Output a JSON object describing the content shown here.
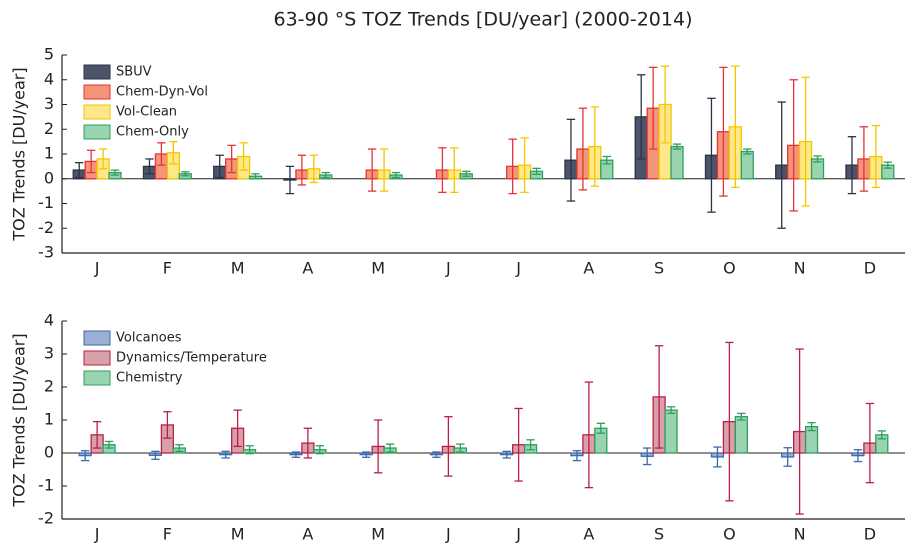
{
  "chart_data": [
    {
      "type": "bar",
      "title": "63-90 °S TOZ Trends [DU/year] (2000-2014)",
      "ylabel": "TOZ Trends [DU/year]",
      "categories": [
        "J",
        "F",
        "M",
        "A",
        "M",
        "J",
        "J",
        "A",
        "S",
        "O",
        "N",
        "D"
      ],
      "ylim": [
        -3,
        5
      ],
      "yticks": [
        -3,
        -2,
        -1,
        0,
        1,
        2,
        3,
        4,
        5
      ],
      "legend": "upper left",
      "series": [
        {
          "name": "SBUV",
          "color": "#4b5469",
          "edge": "#2a3347",
          "values": [
            0.35,
            0.5,
            0.5,
            -0.05,
            null,
            null,
            null,
            0.75,
            2.5,
            0.95,
            0.55,
            0.55
          ],
          "errors": [
            0.3,
            0.3,
            0.45,
            0.55,
            null,
            null,
            null,
            1.65,
            1.7,
            2.3,
            2.55,
            1.15
          ]
        },
        {
          "name": "Chem-Dyn-Vol",
          "color": "#f4957a",
          "edge": "#e2343a",
          "values": [
            0.7,
            1.0,
            0.8,
            0.35,
            0.35,
            0.35,
            0.5,
            1.2,
            2.85,
            1.9,
            1.35,
            0.8
          ],
          "errors": [
            0.45,
            0.45,
            0.55,
            0.6,
            0.85,
            0.9,
            1.1,
            1.65,
            1.65,
            2.6,
            2.65,
            1.3
          ]
        },
        {
          "name": "Vol-Clean",
          "color": "#ffe88a",
          "edge": "#f5c600",
          "values": [
            0.8,
            1.05,
            0.9,
            0.4,
            0.35,
            0.35,
            0.55,
            1.3,
            3.0,
            2.1,
            1.5,
            0.9
          ],
          "errors": [
            0.4,
            0.45,
            0.55,
            0.55,
            0.85,
            0.9,
            1.1,
            1.6,
            1.55,
            2.45,
            2.6,
            1.25
          ]
        },
        {
          "name": "Chem-Only",
          "color": "#98d4b0",
          "edge": "#2e9e5e",
          "values": [
            0.25,
            0.2,
            0.1,
            0.15,
            0.15,
            0.2,
            0.3,
            0.75,
            1.3,
            1.1,
            0.8,
            0.55
          ],
          "errors": [
            0.1,
            0.08,
            0.1,
            0.1,
            0.1,
            0.1,
            0.12,
            0.15,
            0.1,
            0.1,
            0.12,
            0.12
          ]
        }
      ]
    },
    {
      "type": "bar",
      "ylabel": "TOZ Trends [DU/year]",
      "categories": [
        "J",
        "F",
        "M",
        "A",
        "M",
        "J",
        "J",
        "A",
        "S",
        "O",
        "N",
        "D"
      ],
      "ylim": [
        -2,
        4
      ],
      "yticks": [
        -2,
        -1,
        0,
        1,
        2,
        3,
        4
      ],
      "legend": "upper left",
      "series": [
        {
          "name": "Volcanoes",
          "color": "#9bafd6",
          "edge": "#3d6aa8",
          "values": [
            -0.08,
            -0.07,
            -0.05,
            -0.05,
            -0.05,
            -0.05,
            -0.05,
            -0.08,
            -0.1,
            -0.12,
            -0.12,
            -0.08
          ],
          "errors": [
            0.15,
            0.12,
            0.1,
            0.08,
            0.08,
            0.08,
            0.1,
            0.15,
            0.25,
            0.3,
            0.28,
            0.18
          ]
        },
        {
          "name": "Dynamics/Temperature",
          "color": "#d9a0aa",
          "edge": "#b8204a",
          "values": [
            0.55,
            0.85,
            0.75,
            0.3,
            0.2,
            0.2,
            0.25,
            0.55,
            1.7,
            0.95,
            0.65,
            0.3
          ],
          "errors": [
            0.4,
            0.4,
            0.55,
            0.45,
            0.8,
            0.9,
            1.1,
            1.6,
            1.55,
            2.4,
            2.5,
            1.2
          ]
        },
        {
          "name": "Chemistry",
          "color": "#98d4b0",
          "edge": "#2e9e5e",
          "values": [
            0.25,
            0.15,
            0.1,
            0.1,
            0.15,
            0.15,
            0.25,
            0.75,
            1.3,
            1.1,
            0.8,
            0.55
          ],
          "errors": [
            0.1,
            0.1,
            0.12,
            0.12,
            0.12,
            0.12,
            0.15,
            0.15,
            0.1,
            0.1,
            0.12,
            0.12
          ]
        }
      ]
    }
  ]
}
